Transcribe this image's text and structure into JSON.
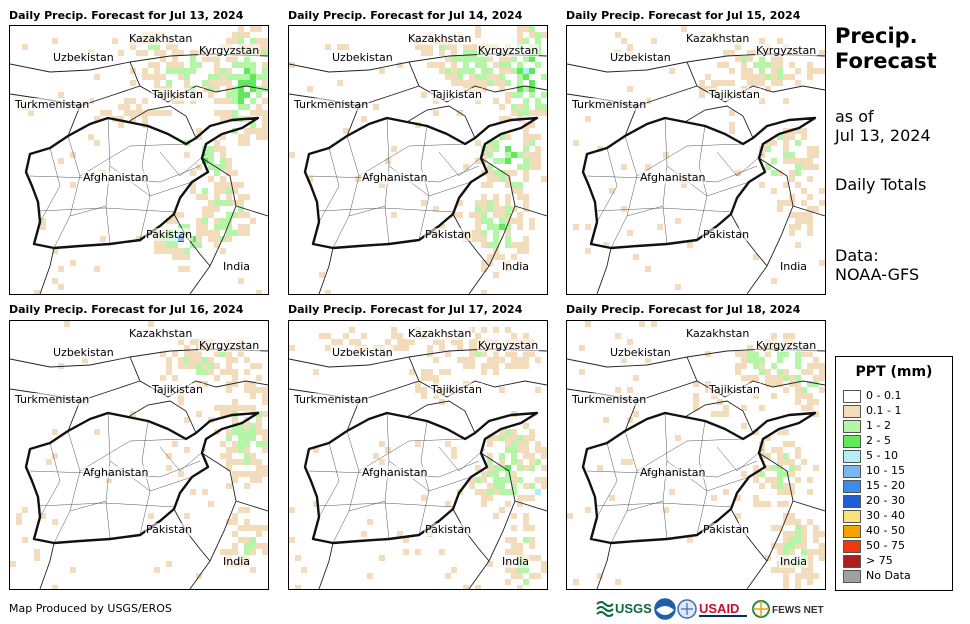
{
  "panels": [
    {
      "title": "Daily Precip. Forecast for Jul 13, 2024",
      "day": 0
    },
    {
      "title": "Daily Precip. Forecast for Jul 14, 2024",
      "day": 1
    },
    {
      "title": "Daily Precip. Forecast for Jul 15, 2024",
      "day": 2
    },
    {
      "title": "Daily Precip. Forecast for Jul 16, 2024",
      "day": 3
    },
    {
      "title": "Daily Precip. Forecast for Jul 17, 2024",
      "day": 4
    },
    {
      "title": "Daily Precip. Forecast for Jul 18, 2024",
      "day": 5
    }
  ],
  "countries": {
    "kazakhstan": "Kazakhstan",
    "kyrgyzstan": "Kyrgyzstan",
    "uzbekistan": "Uzbekistan",
    "tajikistan": "Tajikistan",
    "turkmenistan": "Turkmenistan",
    "afghanistan": "Afghanistan",
    "pakistan": "Pakistan",
    "india": "India"
  },
  "sidebar": {
    "title_line1": "Precip.",
    "title_line2": "Forecast",
    "asof_line1": "as of",
    "asof_line2": "Jul 13, 2024",
    "totals": "Daily Totals",
    "data_line1": "Data:",
    "data_line2": "NOAA-GFS"
  },
  "legend": {
    "title": "PPT (mm)",
    "items": [
      {
        "label": "0 - 0.1",
        "color": "#ffffff"
      },
      {
        "label": "0.1 - 1",
        "color": "#f2dcbc"
      },
      {
        "label": "1 - 2",
        "color": "#b5f5a8"
      },
      {
        "label": "2 - 5",
        "color": "#62e85d"
      },
      {
        "label": "5 - 10",
        "color": "#b2eff5"
      },
      {
        "label": "10 - 15",
        "color": "#78b7f0"
      },
      {
        "label": "15 - 20",
        "color": "#3c8ee8"
      },
      {
        "label": "20 - 30",
        "color": "#1c5fd9"
      },
      {
        "label": "30 - 40",
        "color": "#fce27a"
      },
      {
        "label": "40 - 50",
        "color": "#f5a300"
      },
      {
        "label": "50 - 75",
        "color": "#ee3a0c"
      },
      {
        "label": "> 75",
        "color": "#b01f1f"
      },
      {
        "label": "No Data",
        "color": "#a0a0a0"
      }
    ]
  },
  "footer": {
    "credit": "Map Produced by USGS/EROS",
    "usgs": "USGS",
    "usaid": "USAID",
    "fewsnet": "FEWS NET"
  }
}
